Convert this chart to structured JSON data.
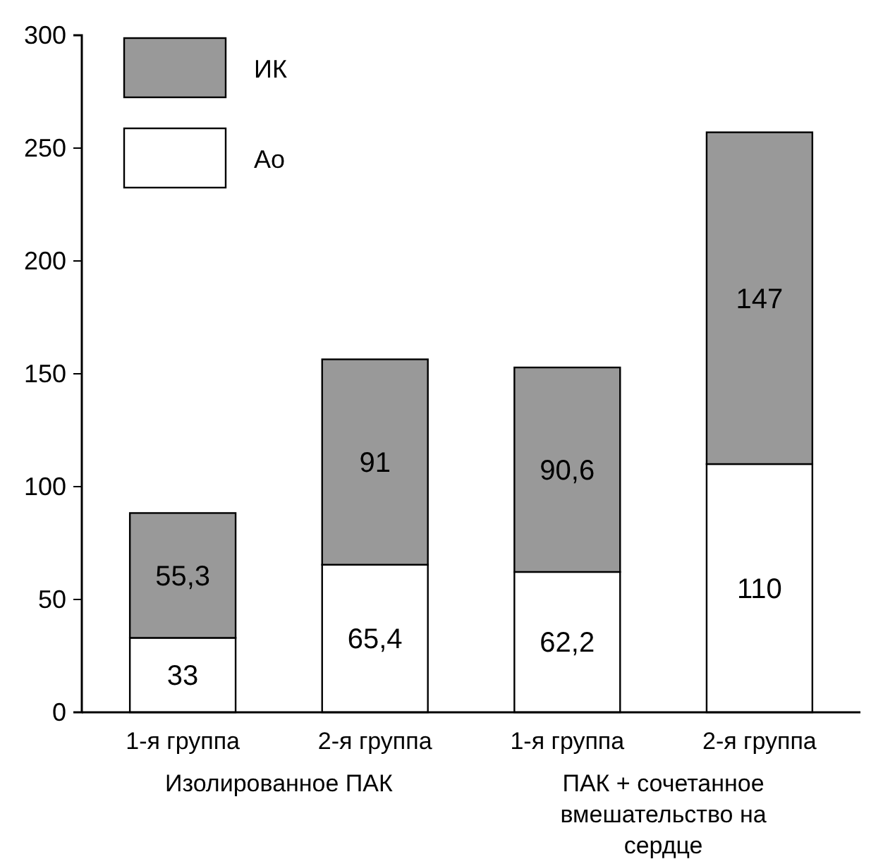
{
  "chart_data": {
    "type": "bar",
    "stacked": true,
    "categories": [
      "1-я группа",
      "2-я группа",
      "1-я группа",
      "2-я группа"
    ],
    "series": [
      {
        "name": "Ao",
        "color": "#ffffff",
        "values": [
          33,
          65.4,
          62.2,
          110
        ],
        "value_labels": [
          "33",
          "65,4",
          "62,2",
          "110"
        ]
      },
      {
        "name": "ИК",
        "color": "#999999",
        "values": [
          55.3,
          91,
          90.6,
          147
        ],
        "value_labels": [
          "55,3",
          "91",
          "90,6",
          "147"
        ]
      }
    ],
    "ylim": [
      0,
      300
    ],
    "yticks": [
      0,
      50,
      100,
      150,
      200,
      250,
      300
    ],
    "legend": "top left",
    "annotations": [
      "Изолированное ПАК",
      "ПАК + сочетанное вмешательство на сердце"
    ]
  }
}
